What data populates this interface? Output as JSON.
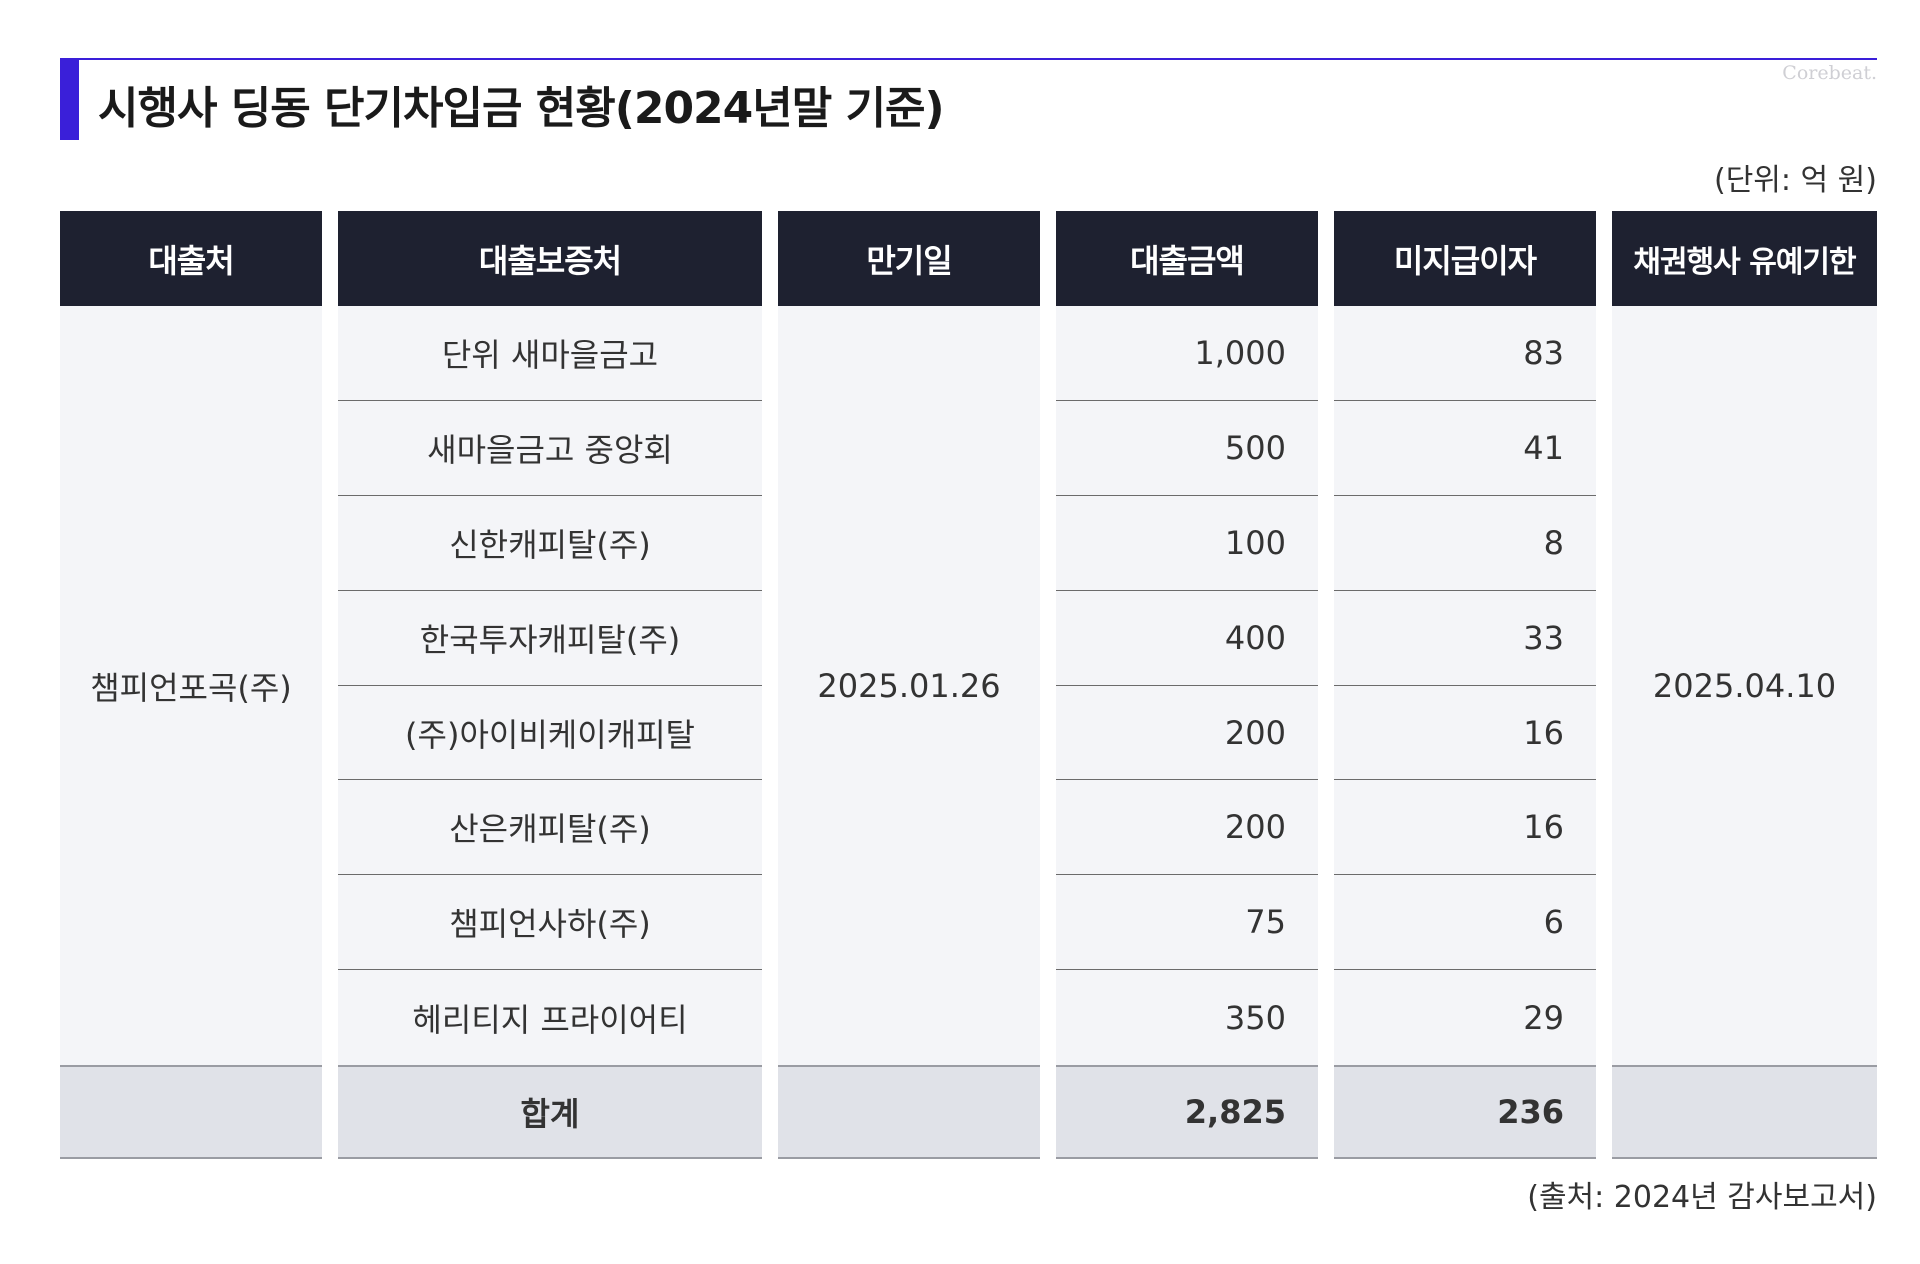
{
  "title": "시행사 딩동 단기차입금 현황(2024년말 기준)",
  "watermark": "Corebeat.",
  "unit_note": "(단위: 억 원)",
  "source_note": "(출처: 2024년 감사보고서)",
  "colors": {
    "accent": "#3a1fd9",
    "header_bg": "#1e2130",
    "body_bg": "#f4f5f8",
    "total_bg": "#e0e2e8"
  },
  "table": {
    "headers": {
      "lender": "대출처",
      "guarantor": "대출보증처",
      "maturity": "만기일",
      "amount": "대출금액",
      "unpaid_interest": "미지급이자",
      "grace_period": "채권행사 유예기한"
    },
    "lender": "챔피언포곡(주)",
    "maturity": "2025.01.26",
    "grace_period": "2025.04.10",
    "rows": [
      {
        "guarantor": "단위 새마을금고",
        "amount": "1,000",
        "interest": "83"
      },
      {
        "guarantor": "새마을금고 중앙회",
        "amount": "500",
        "interest": "41"
      },
      {
        "guarantor": "신한캐피탈(주)",
        "amount": "100",
        "interest": "8"
      },
      {
        "guarantor": "한국투자캐피탈(주)",
        "amount": "400",
        "interest": "33"
      },
      {
        "guarantor": "(주)아이비케이캐피탈",
        "amount": "200",
        "interest": "16"
      },
      {
        "guarantor": "산은캐피탈(주)",
        "amount": "200",
        "interest": "16"
      },
      {
        "guarantor": "챔피언사하(주)",
        "amount": "75",
        "interest": "6"
      },
      {
        "guarantor": "헤리티지 프라이어티",
        "amount": "350",
        "interest": "29"
      }
    ],
    "total": {
      "label": "합계",
      "amount": "2,825",
      "interest": "236"
    }
  }
}
